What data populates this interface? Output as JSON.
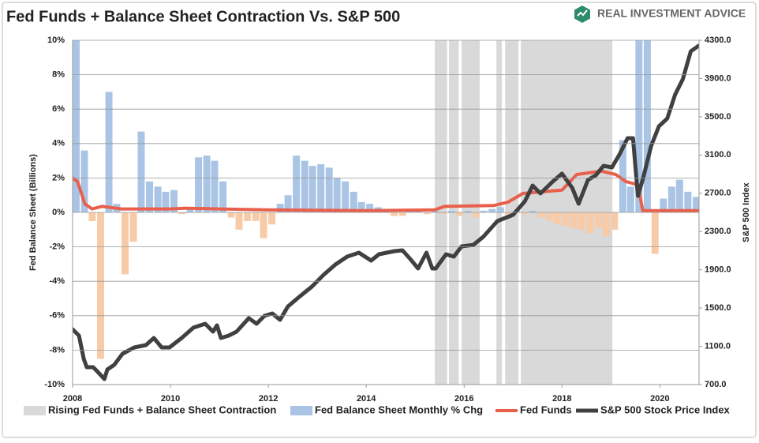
{
  "chart_data": {
    "type": "combo",
    "title": "Fed Funds + Balance Sheet Contraction Vs. S&P 500",
    "brand": "REAL INVESTMENT ADVICE",
    "y_label": "Fed Balance Sheet (Billions)",
    "y2_label": "S&P 500 Index",
    "xlim": [
      2008,
      2020.8
    ],
    "xticks": [
      2008,
      2010,
      2012,
      2014,
      2016,
      2018,
      2020
    ],
    "ylim": [
      -10,
      10
    ],
    "yticks": [
      {
        "value": -10,
        "label": "-10%"
      },
      {
        "value": -8,
        "label": "-8%"
      },
      {
        "value": -6,
        "label": "-6%"
      },
      {
        "value": -4,
        "label": "-4%"
      },
      {
        "value": -2,
        "label": "-2%"
      },
      {
        "value": 0,
        "label": "0%"
      },
      {
        "value": 2,
        "label": "2%"
      },
      {
        "value": 4,
        "label": "4%"
      },
      {
        "value": 6,
        "label": "6%"
      },
      {
        "value": 8,
        "label": "8%"
      },
      {
        "value": 10,
        "label": "10%"
      }
    ],
    "y2lim": [
      700,
      4300
    ],
    "y2ticks": [
      {
        "value": 700,
        "label": "700.0"
      },
      {
        "value": 1100,
        "label": "1100.0"
      },
      {
        "value": 1500,
        "label": "1500.0"
      },
      {
        "value": 1900,
        "label": "1900.0"
      },
      {
        "value": 2300,
        "label": "2300.0"
      },
      {
        "value": 2700,
        "label": "2700.0"
      },
      {
        "value": 3100,
        "label": "3100.0"
      },
      {
        "value": 3500,
        "label": "3500.0"
      },
      {
        "value": 3900,
        "label": "3900.0"
      },
      {
        "value": 4300,
        "label": "4300.0"
      }
    ],
    "grid": true,
    "legend": "bottom",
    "series": [
      {
        "name": "Rising Fed Funds + Balance Sheet Contraction",
        "type": "band",
        "color": "#d9d9d9",
        "ranges": [
          [
            2015.4,
            2015.65
          ],
          [
            2015.69,
            2015.89
          ],
          [
            2015.95,
            2016.32
          ],
          [
            2016.66,
            2016.77
          ],
          [
            2016.84,
            2017.11
          ],
          [
            2017.16,
            2019.03
          ]
        ]
      },
      {
        "name": "Fed Balance Sheet Monthly % Chg",
        "type": "bar",
        "color": "#a9c4e4",
        "negative_color": "#f8cba8",
        "x": [
          2008.0,
          2008.17,
          2008.33,
          2008.5,
          2008.67,
          2008.83,
          2009.0,
          2009.17,
          2009.33,
          2009.5,
          2009.67,
          2009.83,
          2010.0,
          2010.17,
          2010.33,
          2010.5,
          2010.67,
          2010.83,
          2011.0,
          2011.17,
          2011.33,
          2011.5,
          2011.67,
          2011.83,
          2012.0,
          2012.17,
          2012.33,
          2012.5,
          2012.67,
          2012.83,
          2013.0,
          2013.17,
          2013.33,
          2013.5,
          2013.67,
          2013.83,
          2014.0,
          2014.17,
          2014.33,
          2014.5,
          2014.67,
          2014.83,
          2015.0,
          2015.17,
          2015.33,
          2015.5,
          2015.67,
          2015.83,
          2016.0,
          2016.17,
          2016.33,
          2016.5,
          2016.67,
          2016.83,
          2017.0,
          2017.17,
          2017.33,
          2017.5,
          2017.67,
          2017.83,
          2018.0,
          2018.17,
          2018.33,
          2018.5,
          2018.67,
          2018.83,
          2019.0,
          2019.17,
          2019.33,
          2019.5,
          2019.67,
          2019.83,
          2020.0,
          2020.17,
          2020.33,
          2020.5,
          2020.67
        ],
        "values": [
          10,
          3.6,
          -0.5,
          -8.5,
          7.0,
          0.5,
          -3.6,
          -1.7,
          4.7,
          1.8,
          1.5,
          1.2,
          1.3,
          -0.1,
          0.2,
          3.2,
          3.3,
          3.0,
          1.8,
          -0.3,
          -1.0,
          -0.5,
          -0.5,
          -1.5,
          -0.7,
          0.5,
          1.0,
          3.3,
          3.0,
          2.7,
          2.8,
          2.6,
          2.0,
          1.8,
          1.2,
          0.6,
          0.5,
          0.3,
          0.2,
          -0.2,
          -0.2,
          0.1,
          0.1,
          -0.1,
          0.1,
          -0.1,
          0.1,
          -0.2,
          0.1,
          -0.3,
          0.1,
          0.2,
          0.3,
          -0.1,
          0.1,
          -0.1,
          0.1,
          -0.3,
          -0.5,
          -0.7,
          -0.8,
          -0.9,
          -1.0,
          -1.2,
          -0.9,
          -1.4,
          -1.0,
          4.2,
          1.5,
          10,
          10,
          -2.4,
          0.8,
          1.5,
          1.9,
          1.2,
          0.9
        ]
      },
      {
        "name": "Fed Funds",
        "type": "line",
        "color": "#e8604c",
        "x": [
          2008.0,
          2008.1,
          2008.25,
          2008.4,
          2008.6,
          2009.0,
          2010.0,
          2010.3,
          2011.0,
          2012.0,
          2014.0,
          2015.4,
          2015.6,
          2016.6,
          2016.9,
          2017.2,
          2018.0,
          2018.3,
          2018.8,
          2019.1,
          2019.3,
          2019.55,
          2019.65,
          2020.8
        ],
        "values": [
          2.0,
          1.8,
          0.5,
          0.2,
          0.35,
          0.2,
          0.2,
          0.25,
          0.2,
          0.15,
          0.1,
          0.15,
          0.35,
          0.4,
          0.6,
          1.1,
          1.3,
          2.2,
          2.4,
          2.2,
          1.8,
          1.6,
          0.1,
          0.1
        ]
      },
      {
        "name": "S&P 500 Stock Price Index",
        "type": "line",
        "axis": "y2",
        "color": "#404040",
        "x": [
          2008.0,
          2008.13,
          2008.23,
          2008.29,
          2008.42,
          2008.5,
          2008.65,
          2008.71,
          2008.85,
          2009.02,
          2009.26,
          2009.5,
          2009.66,
          2009.82,
          2009.98,
          2010.23,
          2010.47,
          2010.71,
          2010.87,
          2010.95,
          2011.03,
          2011.19,
          2011.35,
          2011.6,
          2011.76,
          2011.92,
          2012.08,
          2012.24,
          2012.4,
          2012.65,
          2012.89,
          2013.13,
          2013.37,
          2013.61,
          2013.85,
          2014.1,
          2014.26,
          2014.42,
          2014.58,
          2014.74,
          2014.9,
          2015.06,
          2015.23,
          2015.35,
          2015.42,
          2015.63,
          2015.79,
          2015.95,
          2016.19,
          2016.39,
          2016.68,
          2017.0,
          2017.24,
          2017.4,
          2017.56,
          2017.81,
          2018.0,
          2018.21,
          2018.34,
          2018.53,
          2018.69,
          2018.85,
          2019.02,
          2019.18,
          2019.34,
          2019.45,
          2019.55,
          2019.66,
          2019.82,
          2019.98,
          2020.15,
          2020.31,
          2020.47,
          2020.63,
          2020.79
        ],
        "values": [
          1278,
          1212,
          964,
          882,
          882,
          840,
          758,
          857,
          906,
          1022,
          1088,
          1113,
          1187,
          1088,
          1088,
          1187,
          1295,
          1336,
          1253,
          1319,
          1187,
          1212,
          1253,
          1394,
          1336,
          1418,
          1443,
          1377,
          1517,
          1625,
          1724,
          1848,
          1955,
          2038,
          2079,
          1996,
          2062,
          2079,
          2095,
          2104,
          2013,
          1914,
          2079,
          1914,
          1914,
          2062,
          2038,
          2145,
          2161,
          2244,
          2409,
          2475,
          2616,
          2781,
          2698,
          2822,
          2905,
          2756,
          2591,
          2839,
          2888,
          2987,
          2971,
          3111,
          3276,
          3276,
          2673,
          2863,
          3193,
          3400,
          3482,
          3730,
          3895,
          4184,
          4242
        ]
      }
    ]
  }
}
